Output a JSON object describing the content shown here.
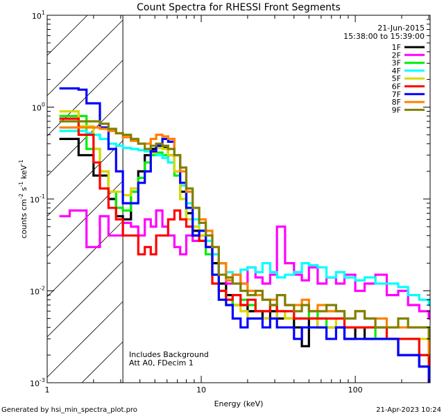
{
  "chart_data": {
    "type": "line",
    "title": "Count Spectra for RHESSI Front Segments",
    "xlabel": "Energy (keV)",
    "ylabel": {
      "base": "counts cm",
      "e1": "-2",
      "s": " s",
      "e2": "-1",
      "k": " keV",
      "e3": "-1"
    },
    "xscale": "log",
    "yscale": "log",
    "xlim": [
      1,
      306
    ],
    "ylim": [
      0.001,
      10
    ],
    "x_ticks": [
      {
        "v": 1,
        "label": "1"
      },
      {
        "v": 10,
        "label": "10"
      },
      {
        "v": 100,
        "label": "100"
      }
    ],
    "y_ticks": [
      {
        "v": 10,
        "base": "10",
        "exp": "1"
      },
      {
        "v": 1,
        "base": "10",
        "exp": "0"
      },
      {
        "v": 0.1,
        "base": "10",
        "exp": "-1"
      },
      {
        "v": 0.01,
        "base": "10",
        "exp": "-2"
      },
      {
        "v": 0.001,
        "base": "10",
        "exp": "-3"
      }
    ],
    "excluded_region_keV": [
      1,
      3.1
    ],
    "date": "21-Jun-2015",
    "time_range": "15:38:00 to 15:39:00",
    "annotations": [
      "Includes Background",
      "Att A0, FDecim 1"
    ],
    "legend_position": "top-right",
    "x": [
      1.2,
      1.4,
      1.6,
      1.8,
      2.0,
      2.2,
      2.5,
      2.8,
      3.1,
      3.5,
      3.9,
      4.3,
      4.7,
      5.1,
      5.6,
      6.1,
      6.7,
      7.3,
      8.0,
      8.8,
      9.7,
      10.7,
      11.8,
      13,
      14.5,
      16,
      18,
      20,
      22.5,
      25,
      28,
      31,
      35,
      40,
      45,
      50,
      57,
      65,
      75,
      85,
      100,
      115,
      135,
      160,
      190,
      220,
      260,
      300
    ],
    "series": [
      {
        "name": "1F",
        "color": "#000000",
        "values": [
          0.45,
          0.45,
          0.3,
          0.3,
          0.18,
          0.18,
          0.1,
          0.065,
          0.06,
          0.12,
          0.2,
          0.3,
          0.35,
          0.38,
          0.36,
          0.3,
          0.2,
          0.12,
          0.07,
          0.045,
          0.04,
          0.03,
          0.02,
          0.012,
          0.009,
          0.007,
          0.007,
          0.006,
          0.006,
          0.005,
          0.006,
          0.005,
          0.005,
          0.004,
          0.0025,
          0.005,
          0.004,
          0.004,
          0.004,
          0.003,
          0.004,
          0.003,
          0.003,
          0.003,
          0.002,
          0.002,
          0.0015,
          0.0012
        ]
      },
      {
        "name": "2F",
        "color": "#ff00ff",
        "values": [
          0.065,
          0.075,
          0.075,
          0.03,
          0.03,
          0.065,
          0.04,
          0.04,
          0.055,
          0.05,
          0.04,
          0.06,
          0.05,
          0.075,
          0.05,
          0.04,
          0.03,
          0.025,
          0.04,
          0.035,
          0.045,
          0.03,
          0.025,
          0.02,
          0.012,
          0.015,
          0.012,
          0.018,
          0.014,
          0.012,
          0.015,
          0.05,
          0.02,
          0.015,
          0.013,
          0.018,
          0.012,
          0.014,
          0.012,
          0.015,
          0.01,
          0.012,
          0.015,
          0.009,
          0.01,
          0.007,
          0.006,
          0.005
        ]
      },
      {
        "name": "3F",
        "color": "#00ee00",
        "values": [
          0.8,
          0.8,
          0.8,
          0.35,
          0.35,
          0.2,
          0.12,
          0.08,
          0.075,
          0.12,
          0.17,
          0.25,
          0.3,
          0.32,
          0.3,
          0.25,
          0.18,
          0.1,
          0.06,
          0.04,
          0.035,
          0.025,
          0.015,
          0.01,
          0.008,
          0.007,
          0.008,
          0.007,
          0.006,
          0.006,
          0.007,
          0.006,
          0.005,
          0.005,
          0.005,
          0.006,
          0.005,
          0.004,
          0.004,
          0.004,
          0.004,
          0.004,
          0.003,
          0.003,
          0.003,
          0.003,
          0.002,
          0.0015
        ]
      },
      {
        "name": "4F",
        "color": "#00ffff",
        "values": [
          0.55,
          0.55,
          0.55,
          0.52,
          0.5,
          0.45,
          0.4,
          0.38,
          0.36,
          0.35,
          0.34,
          0.33,
          0.32,
          0.3,
          0.28,
          0.25,
          0.2,
          0.14,
          0.09,
          0.06,
          0.045,
          0.035,
          0.025,
          0.02,
          0.016,
          0.015,
          0.017,
          0.018,
          0.016,
          0.02,
          0.016,
          0.014,
          0.015,
          0.016,
          0.02,
          0.019,
          0.018,
          0.014,
          0.016,
          0.014,
          0.013,
          0.014,
          0.012,
          0.012,
          0.011,
          0.009,
          0.008,
          0.007
        ]
      },
      {
        "name": "5F",
        "color": "#d8d800",
        "values": [
          0.9,
          0.9,
          0.62,
          0.62,
          0.35,
          0.2,
          0.12,
          0.12,
          0.11,
          0.13,
          0.15,
          0.2,
          0.32,
          0.36,
          0.35,
          0.3,
          0.2,
          0.1,
          0.06,
          0.05,
          0.04,
          0.03,
          0.012,
          0.008,
          0.007,
          0.007,
          0.006,
          0.005,
          0.005,
          0.005,
          0.005,
          0.006,
          0.005,
          0.005,
          0.005,
          0.005,
          0.004,
          0.004,
          0.005,
          0.004,
          0.004,
          0.004,
          0.004,
          0.003,
          0.003,
          0.003,
          0.003,
          0.002
        ]
      },
      {
        "name": "6F",
        "color": "#ff0000",
        "values": [
          0.75,
          0.75,
          0.5,
          0.5,
          0.25,
          0.13,
          0.08,
          0.06,
          0.04,
          0.04,
          0.025,
          0.03,
          0.025,
          0.04,
          0.04,
          0.06,
          0.075,
          0.06,
          0.05,
          0.04,
          0.035,
          0.03,
          0.012,
          0.01,
          0.008,
          0.009,
          0.007,
          0.008,
          0.006,
          0.006,
          0.007,
          0.006,
          0.006,
          0.005,
          0.005,
          0.005,
          0.005,
          0.005,
          0.005,
          0.004,
          0.004,
          0.004,
          0.004,
          0.003,
          0.003,
          0.003,
          0.002,
          0.0015
        ]
      },
      {
        "name": "7F",
        "color": "#0000ff",
        "values": [
          1.6,
          1.6,
          1.55,
          1.1,
          1.1,
          0.6,
          0.35,
          0.2,
          0.09,
          0.09,
          0.15,
          0.2,
          0.33,
          0.38,
          0.45,
          0.42,
          0.3,
          0.15,
          0.08,
          0.04,
          0.045,
          0.03,
          0.015,
          0.008,
          0.007,
          0.005,
          0.004,
          0.005,
          0.005,
          0.004,
          0.005,
          0.004,
          0.004,
          0.003,
          0.004,
          0.004,
          0.004,
          0.003,
          0.004,
          0.003,
          0.003,
          0.003,
          0.003,
          0.003,
          0.002,
          0.002,
          0.0015,
          0.001
        ]
      },
      {
        "name": "8F",
        "color": "#ff8000",
        "values": [
          0.6,
          0.6,
          0.6,
          0.6,
          0.6,
          0.58,
          0.55,
          0.52,
          0.47,
          0.43,
          0.4,
          0.4,
          0.45,
          0.5,
          0.48,
          0.45,
          0.3,
          0.2,
          0.12,
          0.08,
          0.06,
          0.045,
          0.03,
          0.02,
          0.013,
          0.015,
          0.012,
          0.01,
          0.009,
          0.008,
          0.008,
          0.009,
          0.007,
          0.007,
          0.008,
          0.006,
          0.007,
          0.006,
          0.006,
          0.005,
          0.006,
          0.005,
          0.005,
          0.004,
          0.004,
          0.004,
          0.004,
          0.002
        ]
      },
      {
        "name": "9F",
        "color": "#808000",
        "values": [
          0.7,
          0.7,
          0.7,
          0.7,
          0.7,
          0.66,
          0.58,
          0.52,
          0.5,
          0.45,
          0.4,
          0.35,
          0.38,
          0.4,
          0.38,
          0.35,
          0.3,
          0.22,
          0.13,
          0.08,
          0.055,
          0.04,
          0.03,
          0.015,
          0.014,
          0.012,
          0.01,
          0.009,
          0.01,
          0.008,
          0.007,
          0.009,
          0.007,
          0.006,
          0.007,
          0.006,
          0.006,
          0.007,
          0.006,
          0.005,
          0.006,
          0.005,
          0.004,
          0.004,
          0.005,
          0.004,
          0.004,
          0.003
        ]
      }
    ]
  },
  "footer": {
    "left": "Generated by hsi_min_spectra_plot.pro",
    "right": "21-Apr-2023 10:24"
  }
}
